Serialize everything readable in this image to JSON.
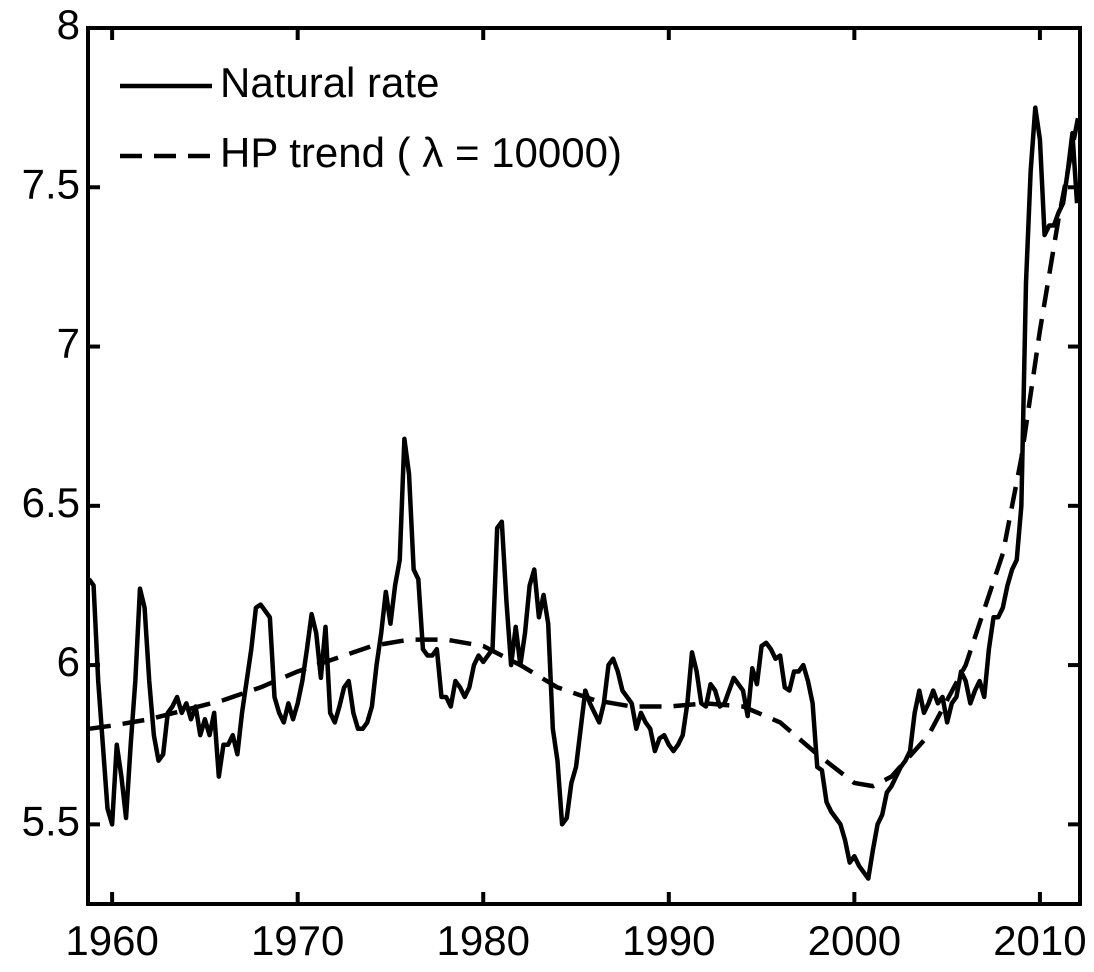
{
  "chart_data": {
    "type": "line",
    "xlim": [
      1958.7,
      2012.16
    ],
    "ylim": [
      5.25,
      8
    ],
    "xticks": [
      1960,
      1970,
      1980,
      1990,
      2000,
      2010
    ],
    "yticks": [
      5.5,
      6,
      6.5,
      7,
      7.5,
      8
    ],
    "legend": "upper left",
    "grid": false,
    "series": [
      {
        "name": "Natural rate",
        "color": "#000000",
        "style": "solid",
        "x": [
          1958.75,
          1959,
          1959.25,
          1959.5,
          1959.75,
          1960,
          1960.25,
          1960.5,
          1960.75,
          1961,
          1961.25,
          1961.5,
          1961.75,
          1962,
          1962.25,
          1962.5,
          1962.75,
          1963,
          1963.25,
          1963.5,
          1963.75,
          1964,
          1964.25,
          1964.5,
          1964.75,
          1965,
          1965.25,
          1965.5,
          1965.75,
          1966,
          1966.25,
          1966.5,
          1966.75,
          1967,
          1967.25,
          1967.5,
          1967.75,
          1968,
          1968.25,
          1968.5,
          1968.75,
          1969,
          1969.25,
          1969.5,
          1969.75,
          1970,
          1970.25,
          1970.5,
          1970.75,
          1971,
          1971.25,
          1971.5,
          1971.75,
          1972,
          1972.25,
          1972.5,
          1972.75,
          1973,
          1973.25,
          1973.5,
          1973.75,
          1974,
          1974.25,
          1974.5,
          1974.75,
          1975,
          1975.25,
          1975.5,
          1975.75,
          1976,
          1976.25,
          1976.5,
          1976.75,
          1977,
          1977.25,
          1977.5,
          1977.75,
          1978,
          1978.25,
          1978.5,
          1978.75,
          1979,
          1979.25,
          1979.5,
          1979.75,
          1980,
          1980.25,
          1980.5,
          1980.75,
          1981,
          1981.25,
          1981.5,
          1981.75,
          1982,
          1982.25,
          1982.5,
          1982.75,
          1983,
          1983.25,
          1983.5,
          1983.75,
          1984,
          1984.25,
          1984.5,
          1984.75,
          1985,
          1985.25,
          1985.5,
          1985.75,
          1986,
          1986.25,
          1986.5,
          1986.75,
          1987,
          1987.25,
          1987.5,
          1987.75,
          1988,
          1988.25,
          1988.5,
          1988.75,
          1989,
          1989.25,
          1989.5,
          1989.75,
          1990,
          1990.25,
          1990.5,
          1990.75,
          1991,
          1991.25,
          1991.5,
          1991.75,
          1992,
          1992.25,
          1992.5,
          1992.75,
          1993,
          1993.25,
          1993.5,
          1993.75,
          1994,
          1994.25,
          1994.5,
          1994.75,
          1995,
          1995.25,
          1995.5,
          1995.75,
          1996,
          1996.25,
          1996.5,
          1996.75,
          1997,
          1997.25,
          1997.5,
          1997.75,
          1998,
          1998.25,
          1998.5,
          1998.75,
          1999,
          1999.25,
          1999.5,
          1999.75,
          2000,
          2000.25,
          2000.5,
          2000.75,
          2001,
          2001.25,
          2001.5,
          2001.75,
          2002,
          2002.25,
          2002.5,
          2002.75,
          2003,
          2003.25,
          2003.5,
          2003.75,
          2004,
          2004.25,
          2004.5,
          2004.75,
          2005,
          2005.25,
          2005.5,
          2005.75,
          2006,
          2006.25,
          2006.5,
          2006.75,
          2007,
          2007.25,
          2007.5,
          2007.75,
          2008,
          2008.25,
          2008.5,
          2008.75,
          2009,
          2009.25,
          2009.5,
          2009.75,
          2010,
          2010.25,
          2010.5,
          2010.75,
          2011,
          2011.25,
          2011.5,
          2011.75,
          2012
        ],
        "values": [
          6.27,
          6.25,
          5.95,
          5.75,
          5.55,
          5.5,
          5.75,
          5.65,
          5.52,
          5.75,
          5.95,
          6.24,
          6.18,
          5.95,
          5.78,
          5.7,
          5.72,
          5.85,
          5.87,
          5.9,
          5.85,
          5.88,
          5.83,
          5.87,
          5.78,
          5.83,
          5.78,
          5.85,
          5.65,
          5.75,
          5.75,
          5.78,
          5.72,
          5.85,
          5.95,
          6.05,
          6.18,
          6.19,
          6.17,
          6.15,
          5.9,
          5.85,
          5.82,
          5.88,
          5.83,
          5.88,
          5.95,
          6.05,
          6.16,
          6.1,
          5.96,
          6.12,
          5.85,
          5.82,
          5.87,
          5.93,
          5.95,
          5.85,
          5.8,
          5.8,
          5.82,
          5.87,
          6.0,
          6.1,
          6.23,
          6.13,
          6.25,
          6.33,
          6.71,
          6.6,
          6.3,
          6.27,
          6.05,
          6.03,
          6.03,
          6.05,
          5.9,
          5.9,
          5.87,
          5.95,
          5.93,
          5.9,
          5.93,
          6.0,
          6.03,
          6.01,
          6.03,
          6.05,
          6.43,
          6.45,
          6.2,
          6.0,
          6.12,
          6.0,
          6.1,
          6.25,
          6.3,
          6.15,
          6.22,
          6.13,
          5.8,
          5.7,
          5.5,
          5.52,
          5.63,
          5.68,
          5.8,
          5.92,
          5.88,
          5.85,
          5.82,
          5.88,
          6.0,
          6.02,
          5.98,
          5.92,
          5.9,
          5.88,
          5.8,
          5.85,
          5.82,
          5.8,
          5.73,
          5.77,
          5.78,
          5.75,
          5.73,
          5.75,
          5.78,
          5.88,
          6.04,
          5.98,
          5.88,
          5.87,
          5.94,
          5.92,
          5.87,
          5.88,
          5.92,
          5.96,
          5.94,
          5.92,
          5.84,
          5.99,
          5.94,
          6.06,
          6.07,
          6.05,
          6.02,
          6.03,
          5.93,
          5.92,
          5.98,
          5.98,
          6.0,
          5.95,
          5.88,
          5.68,
          5.67,
          5.57,
          5.54,
          5.52,
          5.5,
          5.45,
          5.38,
          5.4,
          5.37,
          5.35,
          5.33,
          5.42,
          5.5,
          5.53,
          5.6,
          5.62,
          5.65,
          5.68,
          5.7,
          5.73,
          5.85,
          5.92,
          5.85,
          5.88,
          5.92,
          5.88,
          5.9,
          5.82,
          5.88,
          5.9,
          5.98,
          5.95,
          5.88,
          5.92,
          5.95,
          5.9,
          6.05,
          6.15,
          6.15,
          6.18,
          6.25,
          6.3,
          6.33,
          6.5,
          7.2,
          7.55,
          7.75,
          7.65,
          7.35,
          7.38,
          7.38,
          7.42,
          7.45,
          7.55,
          7.67,
          7.45
        ]
      },
      {
        "name": "HP trend ( λ = 10000)",
        "color": "#000000",
        "style": "dashed",
        "x": [
          1958.75,
          1960,
          1962,
          1964,
          1966,
          1968,
          1970,
          1972,
          1974,
          1976,
          1978,
          1980,
          1982,
          1984,
          1986,
          1988,
          1990,
          1992,
          1994,
          1996,
          1998,
          2000,
          2001,
          2002,
          2004,
          2006,
          2008,
          2009,
          2010,
          2011,
          2012.16
        ],
        "values": [
          5.8,
          5.81,
          5.83,
          5.86,
          5.89,
          5.93,
          5.98,
          6.02,
          6.06,
          6.08,
          6.08,
          6.06,
          6.0,
          5.93,
          5.89,
          5.87,
          5.87,
          5.88,
          5.87,
          5.82,
          5.72,
          5.63,
          5.62,
          5.65,
          5.78,
          6.0,
          6.35,
          6.65,
          7.05,
          7.4,
          7.75
        ]
      }
    ]
  }
}
